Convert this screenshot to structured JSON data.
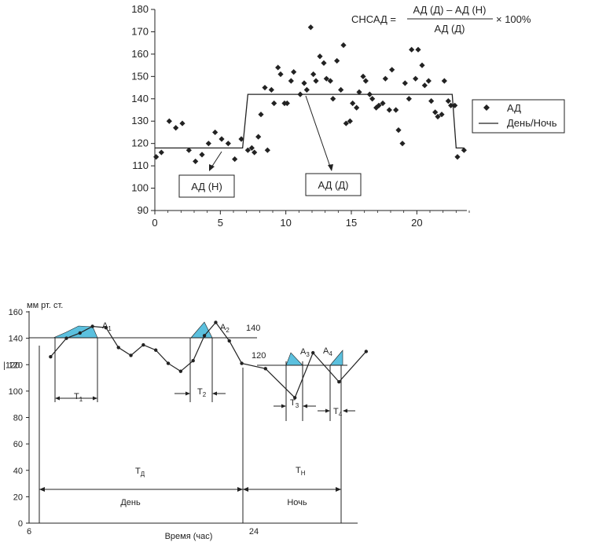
{
  "chart_data": [
    {
      "type": "scatter",
      "formula": {
        "lhs": "СНСАД =",
        "numerator": "АД (Д) – АД (Н)",
        "denominator": "АД (Д)",
        "suffix": "× 100%"
      },
      "xlim": [
        0,
        24
      ],
      "ylim": [
        90,
        180
      ],
      "xticks": [
        0,
        5,
        10,
        15,
        20
      ],
      "yticks": [
        90,
        100,
        110,
        120,
        130,
        140,
        150,
        160,
        170,
        180
      ],
      "legend": {
        "placement": "right",
        "points_label": "АД",
        "line_label": "День/Ночь"
      },
      "annotations": {
        "night_label": "АД (Н)",
        "day_label": "АД (Д)"
      },
      "series": [
        {
          "name": "АД",
          "points": [
            [
              0.1,
              114
            ],
            [
              0.5,
              116
            ],
            [
              1.1,
              130
            ],
            [
              1.6,
              127
            ],
            [
              2.1,
              129
            ],
            [
              2.6,
              117
            ],
            [
              3.1,
              112
            ],
            [
              3.6,
              115
            ],
            [
              4.1,
              120
            ],
            [
              4.6,
              125
            ],
            [
              5.1,
              122
            ],
            [
              5.6,
              120
            ],
            [
              6.1,
              113
            ],
            [
              6.6,
              122
            ],
            [
              7.1,
              117
            ],
            [
              7.4,
              118
            ],
            [
              7.6,
              116
            ],
            [
              7.9,
              123
            ],
            [
              8.1,
              133
            ],
            [
              8.4,
              145
            ],
            [
              8.6,
              117
            ],
            [
              8.9,
              144
            ],
            [
              9.1,
              138
            ],
            [
              9.4,
              154
            ],
            [
              9.6,
              151
            ],
            [
              9.9,
              138
            ],
            [
              10.1,
              138
            ],
            [
              10.4,
              148
            ],
            [
              10.6,
              152
            ],
            [
              11.1,
              142
            ],
            [
              11.4,
              147
            ],
            [
              11.6,
              144
            ],
            [
              11.9,
              172
            ],
            [
              12.1,
              151
            ],
            [
              12.3,
              148
            ],
            [
              12.6,
              159
            ],
            [
              12.9,
              156
            ],
            [
              13.1,
              149
            ],
            [
              13.4,
              148
            ],
            [
              13.6,
              140
            ],
            [
              13.9,
              157
            ],
            [
              14.2,
              144
            ],
            [
              14.4,
              164
            ],
            [
              14.6,
              129
            ],
            [
              14.9,
              130
            ],
            [
              15.1,
              138
            ],
            [
              15.4,
              136
            ],
            [
              15.6,
              143
            ],
            [
              15.9,
              150
            ],
            [
              16.1,
              148
            ],
            [
              16.4,
              142
            ],
            [
              16.6,
              140
            ],
            [
              16.9,
              136
            ],
            [
              17.1,
              137
            ],
            [
              17.4,
              138
            ],
            [
              17.6,
              149
            ],
            [
              17.9,
              135
            ],
            [
              18.1,
              153
            ],
            [
              18.4,
              135
            ],
            [
              18.6,
              126
            ],
            [
              18.9,
              120
            ],
            [
              19.1,
              147
            ],
            [
              19.4,
              140
            ],
            [
              19.6,
              162
            ],
            [
              19.9,
              149
            ],
            [
              20.1,
              162
            ],
            [
              20.4,
              155
            ],
            [
              20.6,
              146
            ],
            [
              20.9,
              148
            ],
            [
              21.1,
              139
            ],
            [
              21.4,
              134
            ],
            [
              21.6,
              132
            ],
            [
              21.9,
              133
            ],
            [
              22.1,
              148
            ],
            [
              22.4,
              139
            ],
            [
              22.6,
              137
            ],
            [
              22.9,
              137
            ],
            [
              23.1,
              114
            ],
            [
              23.6,
              117
            ]
          ]
        },
        {
          "name": "День/Ночь",
          "points": [
            [
              0,
              118
            ],
            [
              6.7,
              118
            ],
            [
              7.1,
              142
            ],
            [
              22.7,
              142
            ],
            [
              23.0,
              118
            ],
            [
              23.6,
              118
            ]
          ]
        }
      ]
    },
    {
      "type": "line",
      "ylabel": "мм рт. ст.",
      "xlabel": "Время (час)",
      "xticks": [
        6,
        24
      ],
      "yticks": [
        0,
        20,
        40,
        60,
        80,
        100,
        120,
        140,
        160
      ],
      "extra_y_tick": 120,
      "ylim": [
        0,
        160
      ],
      "thresholds": [
        {
          "value": 140,
          "label": "140",
          "x_range": [
            6,
            26
          ]
        },
        {
          "value": 120,
          "label": "120",
          "x_range": [
            26,
            35
          ]
        }
      ],
      "areas": [
        {
          "main": "A",
          "sub": "1"
        },
        {
          "main": "A",
          "sub": "2"
        },
        {
          "main": "A",
          "sub": "3"
        },
        {
          "main": "A",
          "sub": "4"
        }
      ],
      "intervals": [
        {
          "main": "T",
          "sub": "1"
        },
        {
          "main": "T",
          "sub": "2"
        },
        {
          "main": "T",
          "sub": "3"
        },
        {
          "main": "T",
          "sub": "4"
        },
        {
          "main": "T",
          "sub": "Д"
        },
        {
          "main": "T",
          "sub": "Н"
        }
      ],
      "periods": {
        "day": "День",
        "night": "Ночь"
      },
      "series": [
        {
          "name": "АД",
          "x": [
            7,
            8.4,
            9.6,
            10.7,
            11.9,
            13,
            14.1,
            15.2,
            16.3,
            17.4,
            18.5,
            19.6,
            20.6,
            21.6,
            22.8,
            23.9,
            26,
            28.6,
            30.2,
            32.5,
            34.9
          ],
          "y": [
            126,
            140,
            144,
            149,
            148,
            133,
            127,
            135,
            131,
            121,
            115,
            123,
            142,
            152,
            138,
            121,
            117,
            95,
            129,
            107,
            130
          ]
        }
      ]
    }
  ]
}
